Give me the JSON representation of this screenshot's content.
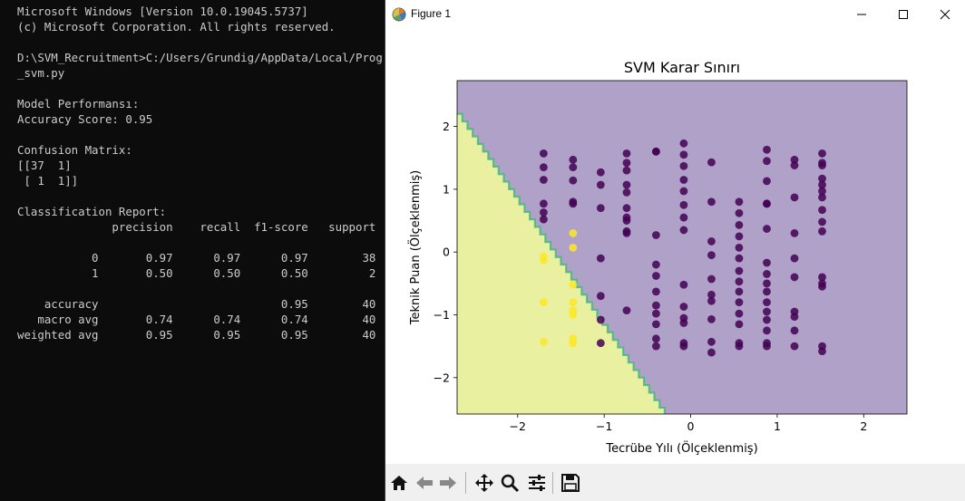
{
  "console": {
    "lines": [
      "Microsoft Windows [Version 10.0.19045.5737]",
      "(c) Microsoft Corporation. All rights reserved.",
      "",
      "D:\\SVM_Recruitment>C:/Users/Grundig/AppData/Local/Programs",
      "_svm.py",
      "",
      "Model Performansı:",
      "Accuracy Score: 0.95",
      "",
      "Confusion Matrix:",
      "[[37  1]",
      " [ 1  1]]",
      "",
      "Classification Report:",
      "              precision    recall  f1-score   support",
      "",
      "           0       0.97      0.97      0.97        38",
      "           1       0.50      0.50      0.50         2",
      "",
      "    accuracy                           0.95        40",
      "   macro avg       0.74      0.74      0.74        40",
      "weighted avg       0.95      0.95      0.95        40"
    ]
  },
  "window": {
    "title": "Figure 1"
  },
  "colors": {
    "region_class0": "#b0a1c8",
    "region_class1": "#e9f0a0",
    "point_class0": "#440154",
    "point_class1": "#fde725",
    "boundary": "#35b779"
  },
  "toolbar": {
    "icons": [
      "home-icon",
      "back-arrow-icon",
      "forward-arrow-icon",
      "pan-icon",
      "zoom-icon",
      "configure-subplots-icon",
      "save-icon"
    ]
  },
  "chart_data": {
    "type": "scatter",
    "title": "SVM Karar Sınırı",
    "xlabel": "Tecrübe Yılı (Ölçeklenmiş)",
    "ylabel": "Teknik Puan (Ölçeklenmiş)",
    "xlim": [
      -2.7,
      2.5
    ],
    "ylim": [
      -2.58,
      2.73
    ],
    "xticks": [
      -2,
      -1,
      0,
      1,
      2
    ],
    "yticks": [
      -2,
      -1,
      0,
      1,
      2
    ],
    "tick_labels_x": [
      "−2",
      "−1",
      "0",
      "1",
      "2"
    ],
    "tick_labels_y": [
      "−2",
      "−1",
      "0",
      "1",
      "2"
    ],
    "grid": false,
    "decision_boundary_line": [
      [
        -2.7,
        2.2
      ],
      [
        -0.3,
        -2.6
      ]
    ],
    "series": [
      {
        "class": 0,
        "points": [
          [
            -1.7,
            1.57
          ],
          [
            -1.7,
            1.35
          ],
          [
            -1.7,
            1.15
          ],
          [
            -1.7,
            0.77
          ],
          [
            -1.7,
            0.63
          ],
          [
            -1.7,
            0.52
          ],
          [
            -1.36,
            1.47
          ],
          [
            -1.36,
            1.35
          ],
          [
            -1.36,
            1.14
          ],
          [
            -1.36,
            0.8
          ],
          [
            -1.36,
            0.77
          ],
          [
            -1.04,
            1.27
          ],
          [
            -1.04,
            1.07
          ],
          [
            -1.04,
            0.7
          ],
          [
            -0.74,
            1.57
          ],
          [
            -0.74,
            1.42
          ],
          [
            -0.74,
            1.3
          ],
          [
            -0.74,
            1.07
          ],
          [
            -0.74,
            0.95
          ],
          [
            -0.74,
            0.7
          ],
          [
            -0.74,
            0.55
          ],
          [
            -0.74,
            0.5
          ],
          [
            -0.74,
            0.33
          ],
          [
            -0.74,
            0.3
          ],
          [
            -0.4,
            1.6
          ],
          [
            -0.4,
            1.6
          ],
          [
            -0.08,
            1.73
          ],
          [
            -0.08,
            1.55
          ],
          [
            -0.08,
            1.37
          ],
          [
            -0.08,
            1.15
          ],
          [
            -0.08,
            0.97
          ],
          [
            -0.08,
            0.75
          ],
          [
            -0.08,
            0.55
          ],
          [
            -0.08,
            0.35
          ],
          [
            0.24,
            1.43
          ],
          [
            0.24,
            0.8
          ],
          [
            0.24,
            0.17
          ],
          [
            0.24,
            -0.05
          ],
          [
            0.24,
            -0.43
          ],
          [
            0.24,
            -0.68
          ],
          [
            0.24,
            -0.78
          ],
          [
            0.24,
            -1.07
          ],
          [
            0.24,
            -1.43
          ],
          [
            0.24,
            -1.6
          ],
          [
            0.56,
            0.8
          ],
          [
            0.56,
            0.62
          ],
          [
            0.56,
            0.43
          ],
          [
            0.56,
            0.25
          ],
          [
            0.56,
            0.07
          ],
          [
            0.56,
            -0.1
          ],
          [
            0.56,
            -0.3
          ],
          [
            0.56,
            -0.47
          ],
          [
            0.56,
            -0.63
          ],
          [
            0.56,
            -0.8
          ],
          [
            0.56,
            -0.98
          ],
          [
            0.56,
            -1.15
          ],
          [
            0.56,
            -1.45
          ],
          [
            0.56,
            -1.5
          ],
          [
            0.88,
            1.63
          ],
          [
            0.88,
            1.45
          ],
          [
            0.88,
            1.13
          ],
          [
            0.88,
            0.77
          ],
          [
            0.88,
            0.77
          ],
          [
            0.88,
            0.37
          ],
          [
            0.88,
            -0.17
          ],
          [
            0.88,
            -0.35
          ],
          [
            0.88,
            -0.5
          ],
          [
            0.88,
            -0.63
          ],
          [
            0.88,
            -0.8
          ],
          [
            0.88,
            -0.95
          ],
          [
            0.88,
            -1.08
          ],
          [
            0.88,
            -1.25
          ],
          [
            0.88,
            -1.45
          ],
          [
            0.88,
            -1.5
          ],
          [
            1.2,
            1.47
          ],
          [
            1.2,
            1.38
          ],
          [
            1.2,
            0.87
          ],
          [
            1.2,
            0.3
          ],
          [
            1.2,
            -0.1
          ],
          [
            1.2,
            -0.4
          ],
          [
            1.2,
            -0.95
          ],
          [
            1.2,
            -1.03
          ],
          [
            1.2,
            -1.25
          ],
          [
            1.2,
            -1.5
          ],
          [
            1.52,
            1.57
          ],
          [
            1.52,
            1.42
          ],
          [
            1.52,
            1.38
          ],
          [
            1.52,
            1.17
          ],
          [
            1.52,
            1.07
          ],
          [
            1.52,
            0.97
          ],
          [
            1.52,
            0.87
          ],
          [
            1.52,
            0.67
          ],
          [
            1.52,
            0.48
          ],
          [
            1.52,
            0.33
          ],
          [
            1.52,
            -0.4
          ],
          [
            1.52,
            -0.5
          ],
          [
            1.52,
            -0.55
          ],
          [
            1.52,
            -1.5
          ],
          [
            1.52,
            -1.58
          ],
          [
            -0.74,
            -0.93
          ],
          [
            -0.4,
            0.27
          ],
          [
            -0.4,
            -0.2
          ],
          [
            -0.4,
            -0.38
          ],
          [
            -0.4,
            -0.63
          ],
          [
            -0.4,
            -0.85
          ],
          [
            -0.4,
            -0.98
          ],
          [
            -0.4,
            -1.15
          ],
          [
            -0.4,
            -1.38
          ],
          [
            -0.4,
            -1.5
          ],
          [
            -0.08,
            -0.52
          ],
          [
            -0.08,
            -0.87
          ],
          [
            -0.08,
            -1.05
          ],
          [
            -0.08,
            -1.13
          ],
          [
            -0.08,
            -1.45
          ],
          [
            -0.08,
            -1.5
          ],
          [
            -1.04,
            -1.45
          ],
          [
            -1.04,
            -1.08
          ],
          [
            -1.04,
            -0.7
          ],
          [
            -1.04,
            -0.1
          ]
        ]
      },
      {
        "class": 1,
        "points": [
          [
            -1.36,
            0.3
          ],
          [
            -1.36,
            0.07
          ],
          [
            -1.7,
            -0.07
          ],
          [
            -1.7,
            -0.13
          ],
          [
            -1.36,
            -0.52
          ],
          [
            -1.36,
            -0.8
          ],
          [
            -1.36,
            -0.93
          ],
          [
            -1.36,
            -1.0
          ],
          [
            -1.7,
            -0.8
          ],
          [
            -1.7,
            -1.43
          ],
          [
            -1.36,
            -1.38
          ],
          [
            -1.36,
            -1.45
          ]
        ]
      }
    ]
  }
}
